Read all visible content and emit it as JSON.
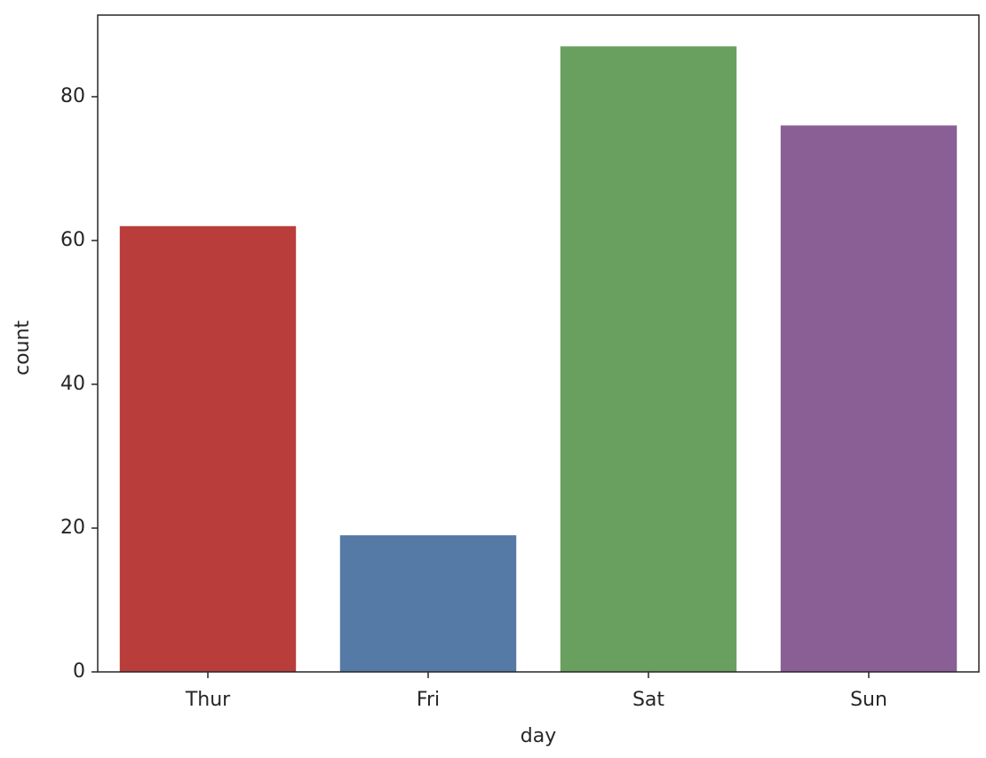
{
  "chart_data": {
    "type": "bar",
    "x_label": "day",
    "y_label": "count",
    "categories": [
      "Thur",
      "Fri",
      "Sat",
      "Sun"
    ],
    "values": [
      62,
      19,
      87,
      76
    ],
    "colors": [
      "#b93d3a",
      "#547aa5",
      "#6aa05f",
      "#8a5f96"
    ],
    "ylim": [
      0,
      91.35
    ],
    "yticks": [
      0,
      20,
      40,
      60,
      80
    ],
    "grid": false
  }
}
